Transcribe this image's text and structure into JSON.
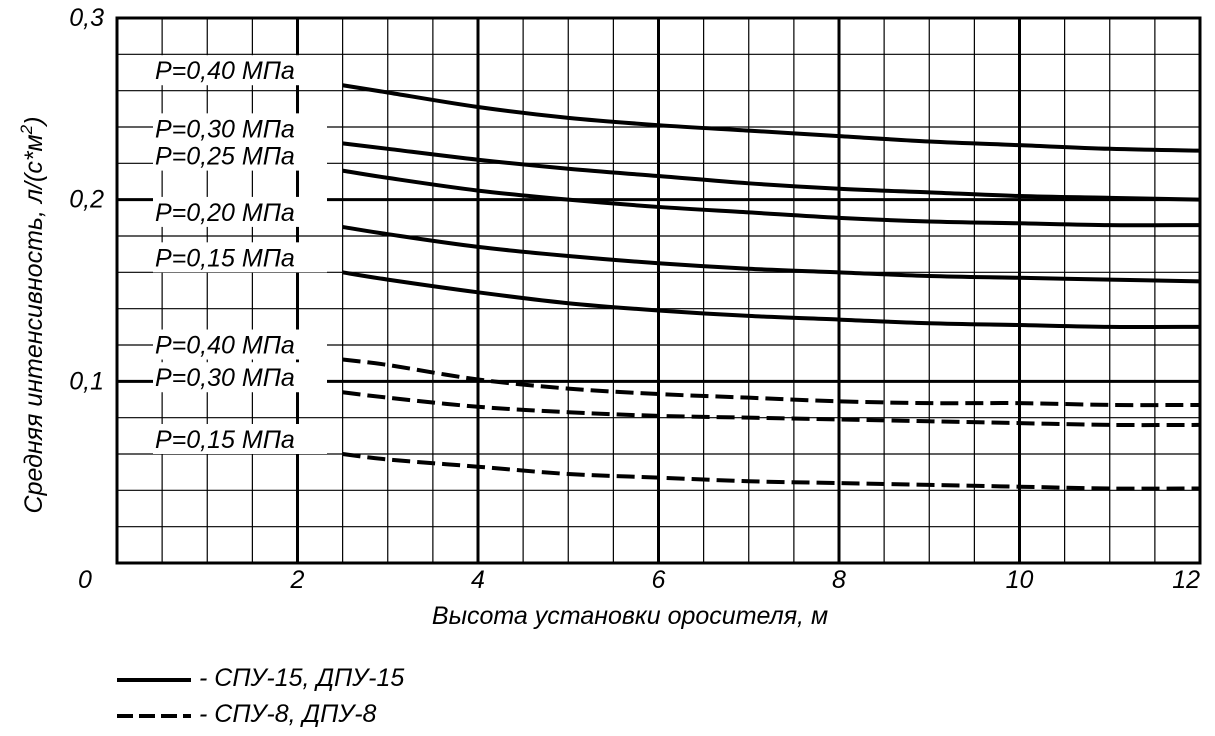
{
  "chart_data": {
    "type": "line",
    "title": "",
    "xlabel": "Высота установки оросителя, м",
    "ylabel": "Средняя интенсивность, л/(с*м",
    "ylabel_sup": "2",
    "ylabel_end": ")",
    "xlim": [
      0,
      12
    ],
    "ylim": [
      0,
      0.3
    ],
    "x_ticks": [
      {
        "value": 0,
        "label": "0"
      },
      {
        "value": 2,
        "label": "2"
      },
      {
        "value": 4,
        "label": "4"
      },
      {
        "value": 6,
        "label": "6"
      },
      {
        "value": 8,
        "label": "8"
      },
      {
        "value": 10,
        "label": "10"
      },
      {
        "value": 12,
        "label": "12"
      }
    ],
    "y_ticks": [
      {
        "value": 0.1,
        "label": "0,1"
      },
      {
        "value": 0.2,
        "label": "0,2"
      },
      {
        "value": 0.3,
        "label": "0,3"
      }
    ],
    "grid": true,
    "x": [
      2.5,
      3,
      4,
      5,
      6,
      7,
      8,
      9,
      10,
      11,
      12
    ],
    "series": [
      {
        "name": "P=0,40 МПа",
        "group": "СПУ-15, ДПУ-15",
        "style": "solid",
        "values": [
          0.263,
          0.259,
          0.251,
          0.245,
          0.241,
          0.238,
          0.235,
          0.232,
          0.23,
          0.228,
          0.227
        ]
      },
      {
        "name": "P=0,30 МПа",
        "group": "СПУ-15, ДПУ-15",
        "style": "solid",
        "values": [
          0.231,
          0.228,
          0.222,
          0.217,
          0.213,
          0.209,
          0.206,
          0.204,
          0.202,
          0.201,
          0.2
        ]
      },
      {
        "name": "P=0,25 МПа",
        "group": "СПУ-15, ДПУ-15",
        "style": "solid",
        "values": [
          0.216,
          0.212,
          0.205,
          0.2,
          0.196,
          0.193,
          0.19,
          0.188,
          0.187,
          0.186,
          0.186
        ]
      },
      {
        "name": "P=0,20 МПа",
        "group": "СПУ-15, ДПУ-15",
        "style": "solid",
        "values": [
          0.185,
          0.181,
          0.174,
          0.169,
          0.165,
          0.162,
          0.16,
          0.158,
          0.157,
          0.156,
          0.155
        ]
      },
      {
        "name": "P=0,15 МПа",
        "group": "СПУ-15, ДПУ-15",
        "style": "solid",
        "values": [
          0.16,
          0.156,
          0.149,
          0.143,
          0.139,
          0.136,
          0.134,
          0.132,
          0.131,
          0.13,
          0.13
        ]
      },
      {
        "name": "P=0,40 МПа",
        "group": "СПУ-8, ДПУ-8",
        "style": "dashed",
        "values": [
          0.112,
          0.109,
          0.101,
          0.096,
          0.093,
          0.091,
          0.089,
          0.088,
          0.088,
          0.087,
          0.087
        ]
      },
      {
        "name": "P=0,30 МПа",
        "group": "СПУ-8, ДПУ-8",
        "style": "dashed",
        "values": [
          0.094,
          0.091,
          0.086,
          0.083,
          0.081,
          0.08,
          0.079,
          0.078,
          0.077,
          0.076,
          0.076
        ]
      },
      {
        "name": "P=0,15 МПа",
        "group": "СПУ-8, ДПУ-8",
        "style": "dashed",
        "values": [
          0.06,
          0.057,
          0.053,
          0.049,
          0.047,
          0.045,
          0.044,
          0.043,
          0.042,
          0.041,
          0.041
        ]
      }
    ],
    "legend": [
      {
        "style": "solid",
        "label": "- СПУ-15, ДПУ-15"
      },
      {
        "style": "dashed",
        "label": "- СПУ-8, ДПУ-8"
      }
    ],
    "legend_position": "bottom-left",
    "colors": {
      "line": "#000000",
      "grid": "#000000",
      "background": "#ffffff"
    }
  }
}
